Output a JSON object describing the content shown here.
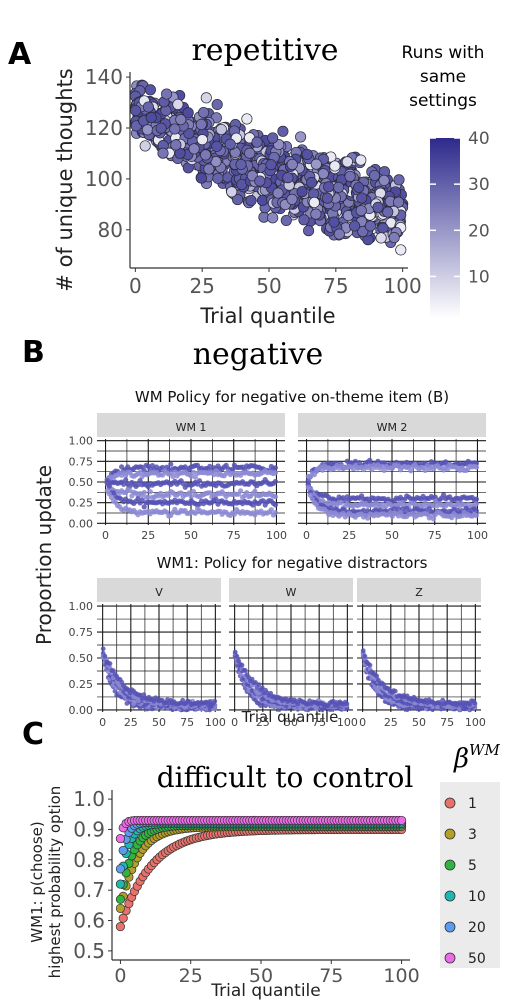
{
  "panels": {
    "a": {
      "letter": "A",
      "title": "repetitive",
      "legend": {
        "title_lines": [
          "Runs with",
          "same",
          "settings"
        ],
        "ticks": [
          "40",
          "30",
          "20",
          "10"
        ],
        "scale": {
          "min": 1,
          "max": 40
        },
        "colors": [
          "#ffffff",
          "#2d2a8c"
        ]
      }
    },
    "b": {
      "letter": "B",
      "title": "negative",
      "top_title": "WM Policy for negative on-theme item (B)",
      "bottom_title": "WM1: Policy for negative distractors",
      "ylabel": "Proportion update",
      "xlabel": "Trial quantile",
      "facets_top": [
        "WM 1",
        "WM 2"
      ],
      "facets_bottom": [
        "V",
        "W",
        "Z"
      ]
    },
    "c": {
      "letter": "C",
      "title": "difficult to control",
      "legend_title": "β",
      "legend_title_sup": "WM"
    }
  },
  "colors": {
    "point": "#5b57b8",
    "point_light": "#c9c7ea",
    "facet_strip": "#d9d9d9",
    "legend_bg": "#ebebeb"
  },
  "chart_data": [
    {
      "type": "scatter",
      "panel": "A",
      "title": "repetitive",
      "xlabel": "Trial quantile",
      "ylabel": "# of unique thoughts",
      "xlim": [
        -2,
        102
      ],
      "ylim": [
        65,
        142
      ],
      "xticks": [
        "0",
        "25",
        "50",
        "75",
        "100"
      ],
      "yticks": [
        "80",
        "100",
        "120",
        "140"
      ],
      "trend": {
        "x": [
          0,
          25,
          50,
          75,
          100
        ],
        "y_center": [
          127,
          113,
          102,
          94,
          88
        ],
        "y_spread": [
          8,
          12,
          13,
          13,
          12
        ]
      },
      "color_variable": "Runs with same settings"
    },
    {
      "type": "scatter",
      "panel": "B-top",
      "title": "WM Policy for negative on-theme item (B)",
      "ylabel": "Proportion update",
      "xlim": [
        -5,
        105
      ],
      "ylim": [
        -0.02,
        1.02
      ],
      "xticks": [
        "0",
        "25",
        "50",
        "75",
        "100"
      ],
      "yticks": [
        "0.00",
        "0.25",
        "0.50",
        "0.75",
        "1.00"
      ],
      "facets": [
        {
          "name": "WM 1",
          "start": 0.5,
          "levels": [
            0.67,
            0.6,
            0.48,
            0.35,
            0.25,
            0.13
          ]
        },
        {
          "name": "WM 2",
          "start": 0.5,
          "levels": [
            0.72,
            0.68,
            0.3,
            0.22,
            0.15,
            0.1
          ]
        }
      ]
    },
    {
      "type": "scatter",
      "panel": "B-bottom",
      "title": "WM1: Policy for negative distractors",
      "xlabel": "Trial quantile",
      "ylabel": "Proportion update",
      "xlim": [
        -5,
        105
      ],
      "ylim": [
        -0.02,
        1.02
      ],
      "xticks": [
        "0",
        "25",
        "50",
        "75",
        "100"
      ],
      "yticks": [
        "0.00",
        "0.25",
        "0.50",
        "0.75",
        "1.00"
      ],
      "facets": [
        {
          "name": "V",
          "start": 0.55,
          "end": 0.04
        },
        {
          "name": "W",
          "start": 0.55,
          "end": 0.04
        },
        {
          "name": "Z",
          "start": 0.55,
          "end": 0.04
        }
      ]
    },
    {
      "type": "scatter",
      "panel": "C",
      "title": "difficult to control",
      "xlabel": "Trial quantile",
      "ylabel_lines": [
        "WM1: p(choose)",
        "highest probability option"
      ],
      "xlim": [
        -3,
        103
      ],
      "ylim": [
        0.47,
        1.03
      ],
      "xticks": [
        "0",
        "25",
        "50",
        "75",
        "100"
      ],
      "yticks": [
        "0.5",
        "0.6",
        "0.7",
        "0.8",
        "0.9",
        "1.0"
      ],
      "legend_title": "β^WM",
      "series": [
        {
          "name": "1",
          "color": "#e8716b",
          "start": 0.58,
          "plateau": 0.9,
          "rate": 0.09
        },
        {
          "name": "3",
          "color": "#b3a026",
          "start": 0.64,
          "plateau": 0.91,
          "rate": 0.16
        },
        {
          "name": "5",
          "color": "#2fb53f",
          "start": 0.67,
          "plateau": 0.915,
          "rate": 0.22
        },
        {
          "name": "10",
          "color": "#1fb8b0",
          "start": 0.72,
          "plateau": 0.92,
          "rate": 0.35
        },
        {
          "name": "20",
          "color": "#5a9cf0",
          "start": 0.77,
          "plateau": 0.925,
          "rate": 0.5
        },
        {
          "name": "50",
          "color": "#ec6be6",
          "start": 0.87,
          "plateau": 0.93,
          "rate": 0.9
        }
      ]
    }
  ]
}
